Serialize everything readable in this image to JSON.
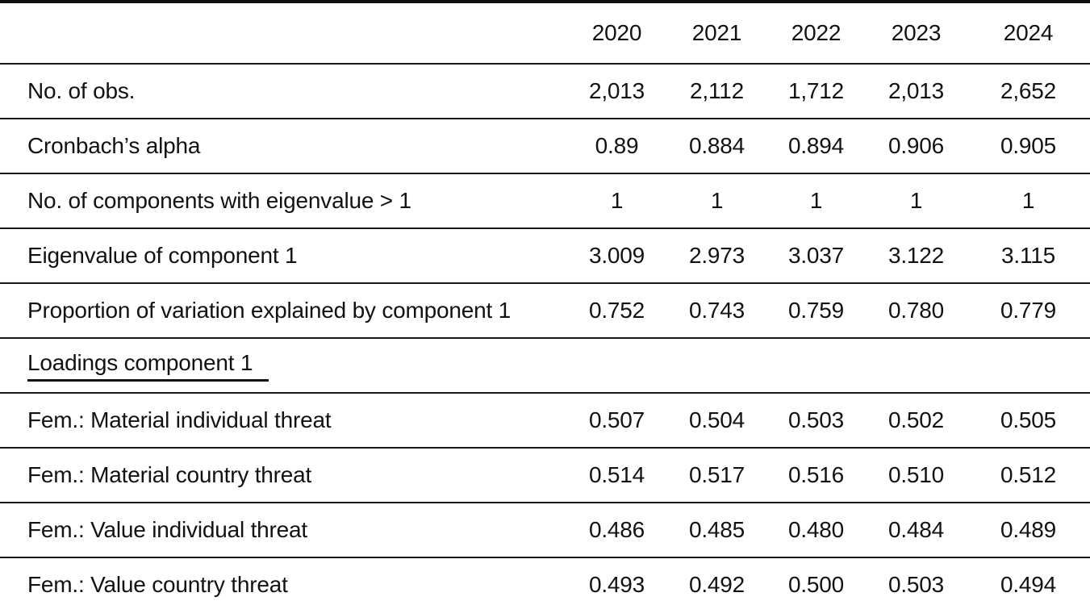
{
  "colors": {
    "background": "#ffffff",
    "text": "#121212",
    "rule": "#181818"
  },
  "table": {
    "corner": "",
    "years": [
      "2020",
      "2021",
      "2022",
      "2023",
      "2024"
    ],
    "rows": [
      {
        "label": "No. of obs.",
        "values": [
          "2,013",
          "2,112",
          "1,712",
          "2,013",
          "2,652"
        ]
      },
      {
        "label": "Cronbach’s alpha",
        "values": [
          "0.89",
          "0.884",
          "0.894",
          "0.906",
          "0.905"
        ]
      },
      {
        "label": "No. of components with eigenvalue > 1",
        "values": [
          "1",
          "1",
          "1",
          "1",
          "1"
        ]
      },
      {
        "label": "Eigenvalue of component 1",
        "values": [
          "3.009",
          "2.973",
          "3.037",
          "3.122",
          "3.115"
        ]
      },
      {
        "label": "Proportion of variation explained by component 1",
        "values": [
          "0.752",
          "0.743",
          "0.759",
          "0.780",
          "0.779"
        ]
      },
      {
        "label": "Loadings component 1",
        "section": true,
        "values": [
          "",
          "",
          "",
          "",
          ""
        ]
      },
      {
        "label": "Fem.: Material individual threat",
        "values": [
          "0.507",
          "0.504",
          "0.503",
          "0.502",
          "0.505"
        ]
      },
      {
        "label": "Fem.: Material country threat",
        "values": [
          "0.514",
          "0.517",
          "0.516",
          "0.510",
          "0.512"
        ]
      },
      {
        "label": "Fem.: Value individual threat",
        "values": [
          "0.486",
          "0.485",
          "0.480",
          "0.484",
          "0.489"
        ]
      },
      {
        "label": "Fem.: Value country threat",
        "values": [
          "0.493",
          "0.492",
          "0.500",
          "0.503",
          "0.494"
        ]
      }
    ]
  }
}
